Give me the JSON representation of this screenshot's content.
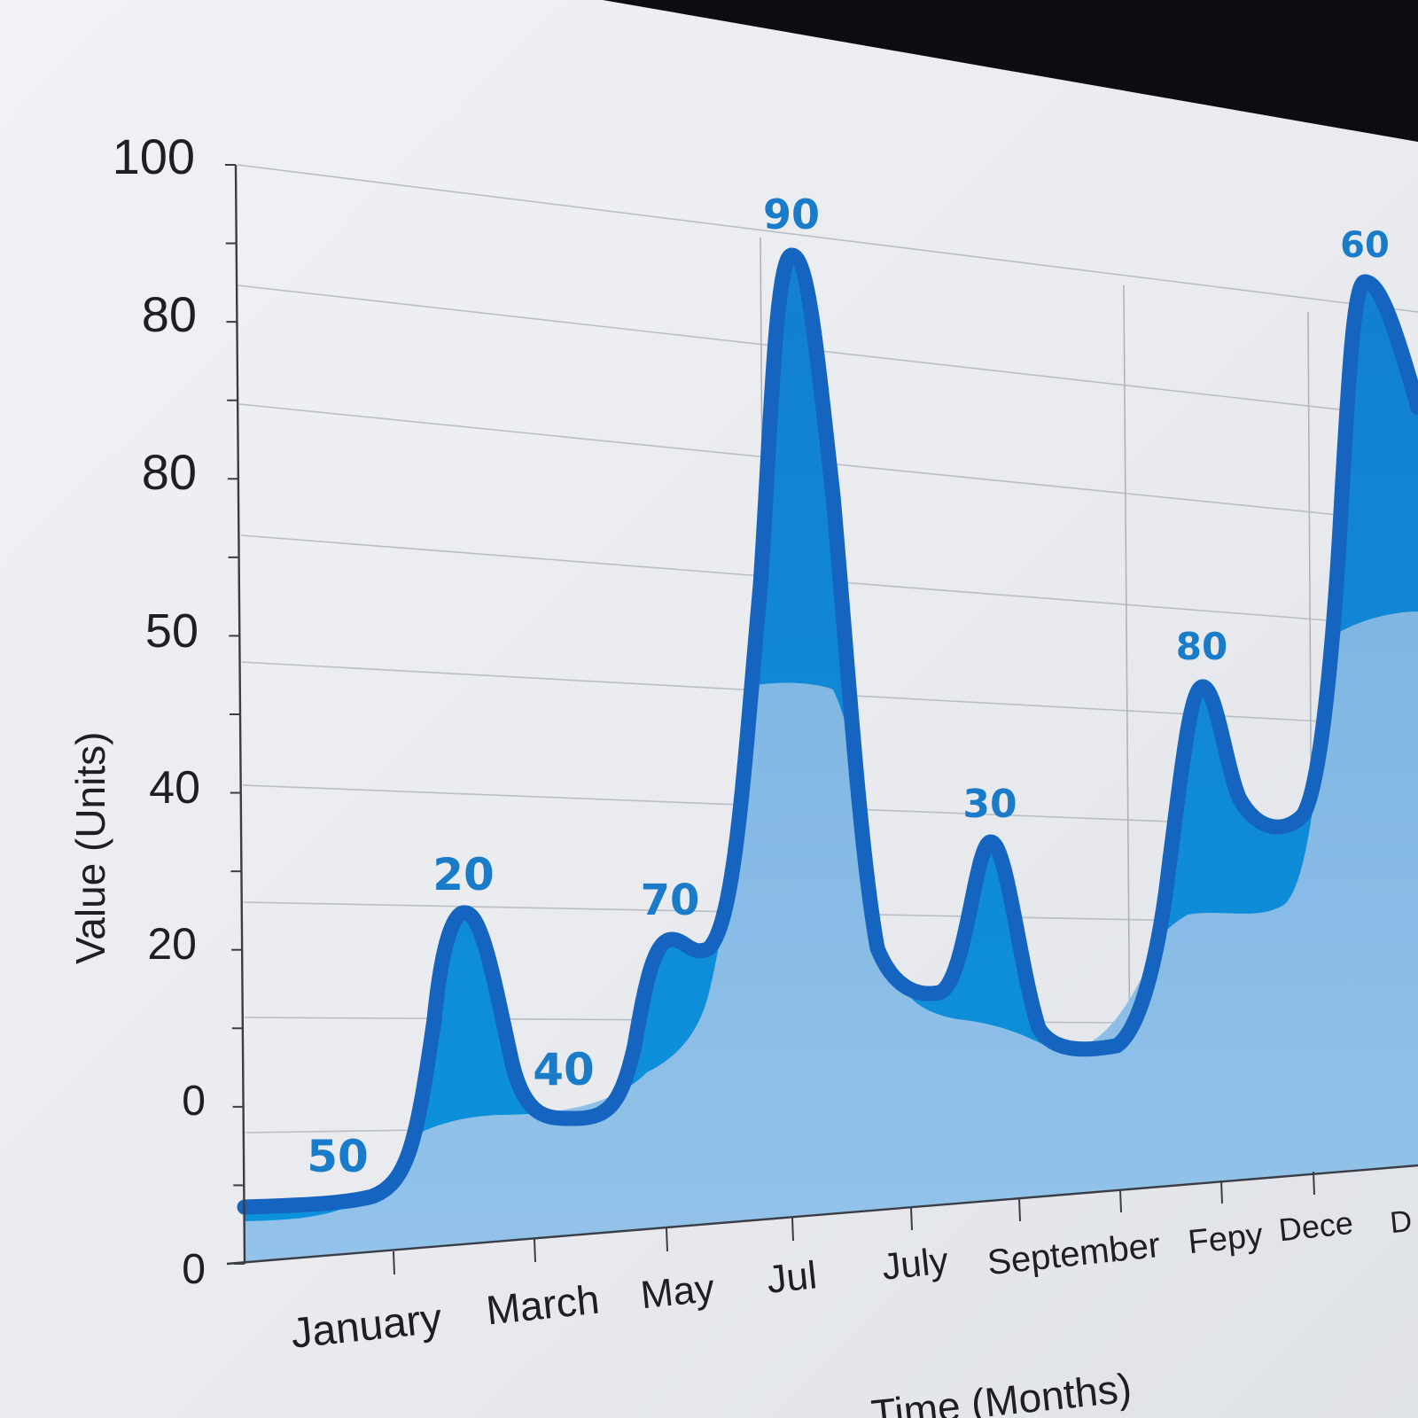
{
  "chart_data": {
    "type": "area",
    "title": "",
    "xlabel": "Time (Months)",
    "ylabel": "Value (Units)",
    "y_tick_labels": [
      "0",
      "0",
      "20",
      "40",
      "50",
      "80",
      "80",
      "100"
    ],
    "x_tick_labels": [
      "January",
      "March",
      "May",
      "Jul",
      "July",
      "September",
      "Fepy",
      "Dece",
      "D"
    ],
    "grid": true,
    "legend": "none",
    "points": [
      {
        "label": "50"
      },
      {
        "label": "20"
      },
      {
        "label": "40"
      },
      {
        "label": "70"
      },
      {
        "label": "90"
      },
      {
        "label": "30"
      },
      {
        "label": "80"
      },
      {
        "label": "60"
      }
    ],
    "colors": {
      "line": "#1565c0",
      "fill_upper": "#1a8ad6",
      "fill_lower": "#8ec0e6",
      "label": "#1a7cc8",
      "background": "#eceef2",
      "bezel": "#0b0d12"
    }
  }
}
